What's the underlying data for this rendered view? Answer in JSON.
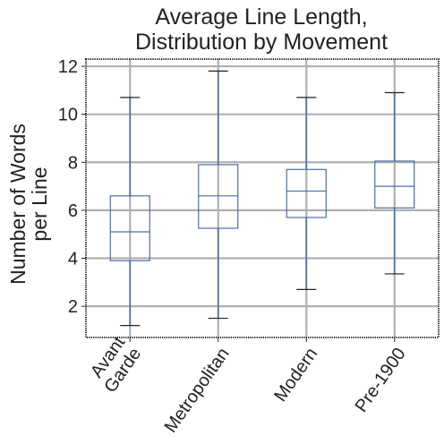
{
  "chart_data": {
    "type": "box",
    "title_lines": [
      "Average Line Length,",
      "Distribution by Movement"
    ],
    "xlabel": "",
    "ylabel_lines": [
      "Number of Words",
      "per Line"
    ],
    "ylim": [
      0.7,
      12.3
    ],
    "yticks": [
      2,
      4,
      6,
      8,
      10,
      12
    ],
    "grid": true,
    "categories": [
      {
        "label_lines": [
          "Avant",
          "Garde"
        ],
        "whisker_low": 1.2,
        "q1": 3.9,
        "median": 5.1,
        "q3": 6.6,
        "whisker_high": 10.7
      },
      {
        "label_lines": [
          "Metropolitan"
        ],
        "whisker_low": 1.5,
        "q1": 5.25,
        "median": 6.6,
        "q3": 7.9,
        "whisker_high": 11.8
      },
      {
        "label_lines": [
          "Modern"
        ],
        "whisker_low": 2.7,
        "q1": 5.7,
        "median": 6.8,
        "q3": 7.7,
        "whisker_high": 10.7
      },
      {
        "label_lines": [
          "Pre-1900"
        ],
        "whisker_low": 3.35,
        "q1": 6.1,
        "median": 7.0,
        "q3": 8.05,
        "whisker_high": 10.9
      }
    ],
    "colors": {
      "box": "#4c6fa5",
      "whisker": "#4c6fa5",
      "cap": "#222222",
      "grid": "#b0b0b0",
      "frame": "#222222"
    }
  }
}
